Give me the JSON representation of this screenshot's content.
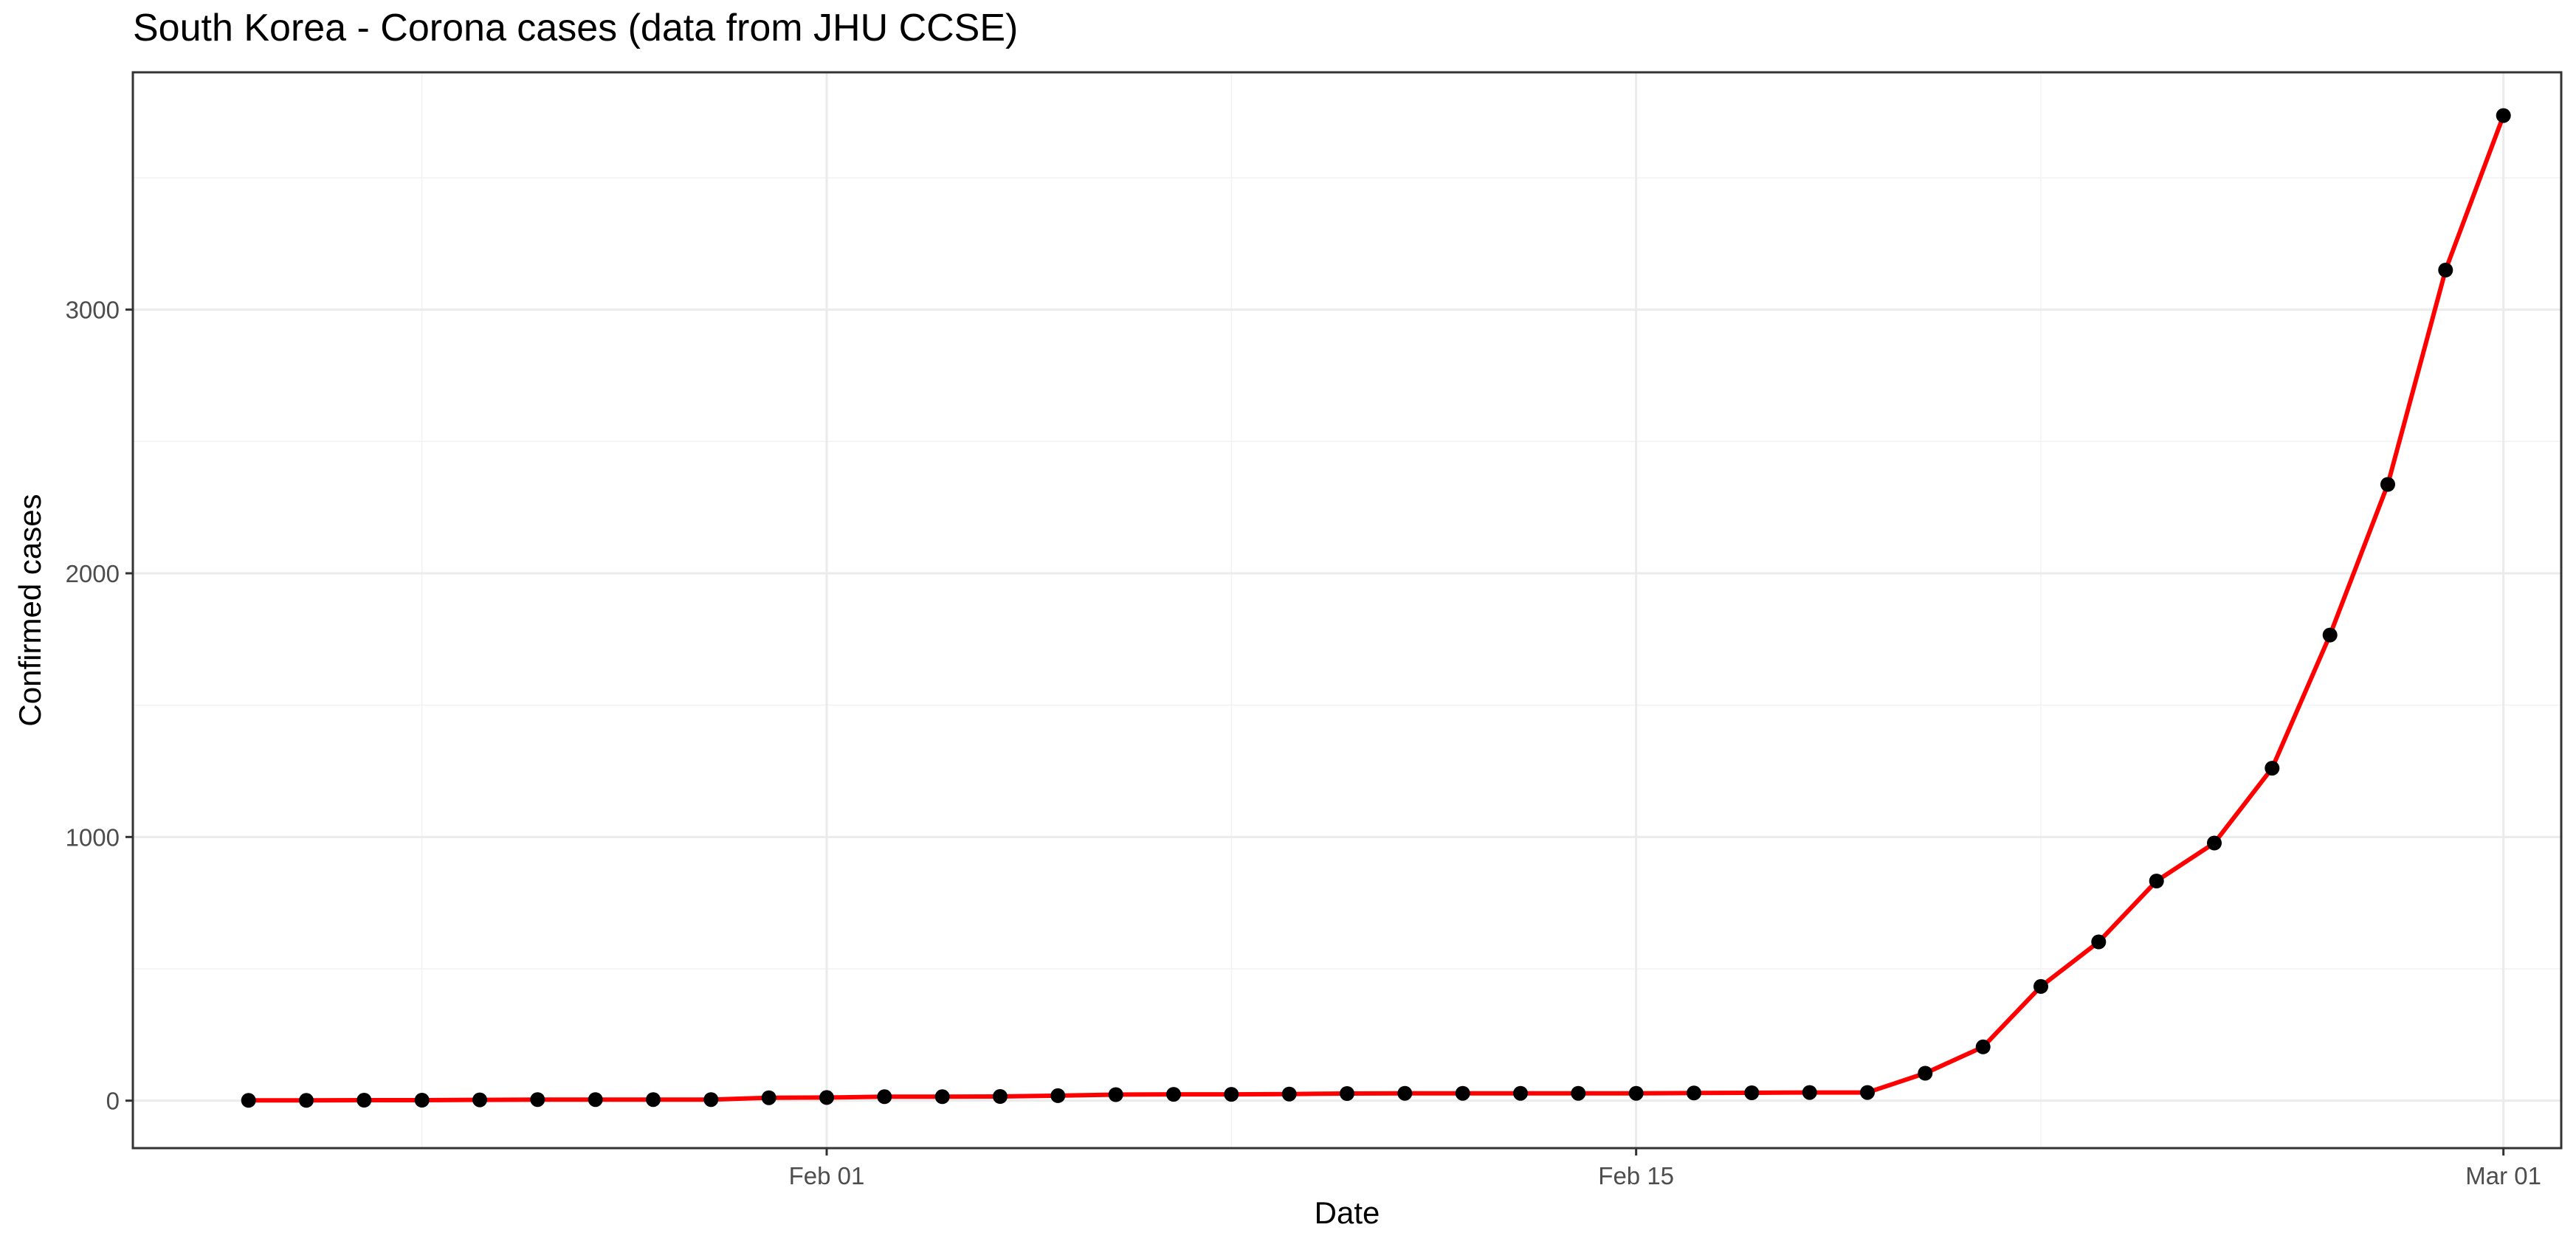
{
  "chart_data": {
    "type": "line",
    "title": "South Korea - Corona cases (data from JHU CCSE)",
    "xlabel": "Date",
    "ylabel": "Confirmed cases",
    "x_ticks": [
      "Feb 01",
      "Feb 15",
      "Mar 01"
    ],
    "y_ticks": [
      "0",
      "1000",
      "2000",
      "3000"
    ],
    "xlim": [
      "2020-01-20",
      "2020-03-02"
    ],
    "ylim": [
      -180,
      3900
    ],
    "grid": true,
    "line_color": "#ff0000",
    "point_color": "#000000",
    "series": [
      {
        "x": [
          "2020-01-22",
          "2020-01-23",
          "2020-01-24",
          "2020-01-25",
          "2020-01-26",
          "2020-01-27",
          "2020-01-28",
          "2020-01-29",
          "2020-01-30",
          "2020-01-31",
          "2020-02-01",
          "2020-02-02",
          "2020-02-03",
          "2020-02-04",
          "2020-02-05",
          "2020-02-06",
          "2020-02-07",
          "2020-02-08",
          "2020-02-09",
          "2020-02-10",
          "2020-02-11",
          "2020-02-12",
          "2020-02-13",
          "2020-02-14",
          "2020-02-15",
          "2020-02-16",
          "2020-02-17",
          "2020-02-18",
          "2020-02-19",
          "2020-02-20",
          "2020-02-21",
          "2020-02-22",
          "2020-02-23",
          "2020-02-24",
          "2020-02-25",
          "2020-02-26",
          "2020-02-27",
          "2020-02-28",
          "2020-02-29",
          "2020-03-01"
        ],
        "values": [
          1,
          1,
          2,
          2,
          3,
          4,
          4,
          4,
          4,
          11,
          12,
          15,
          15,
          16,
          19,
          23,
          24,
          24,
          25,
          27,
          28,
          28,
          28,
          28,
          28,
          29,
          30,
          31,
          31,
          104,
          204,
          433,
          602,
          833,
          977,
          1261,
          1766,
          2337,
          3150,
          3736
        ]
      }
    ]
  }
}
